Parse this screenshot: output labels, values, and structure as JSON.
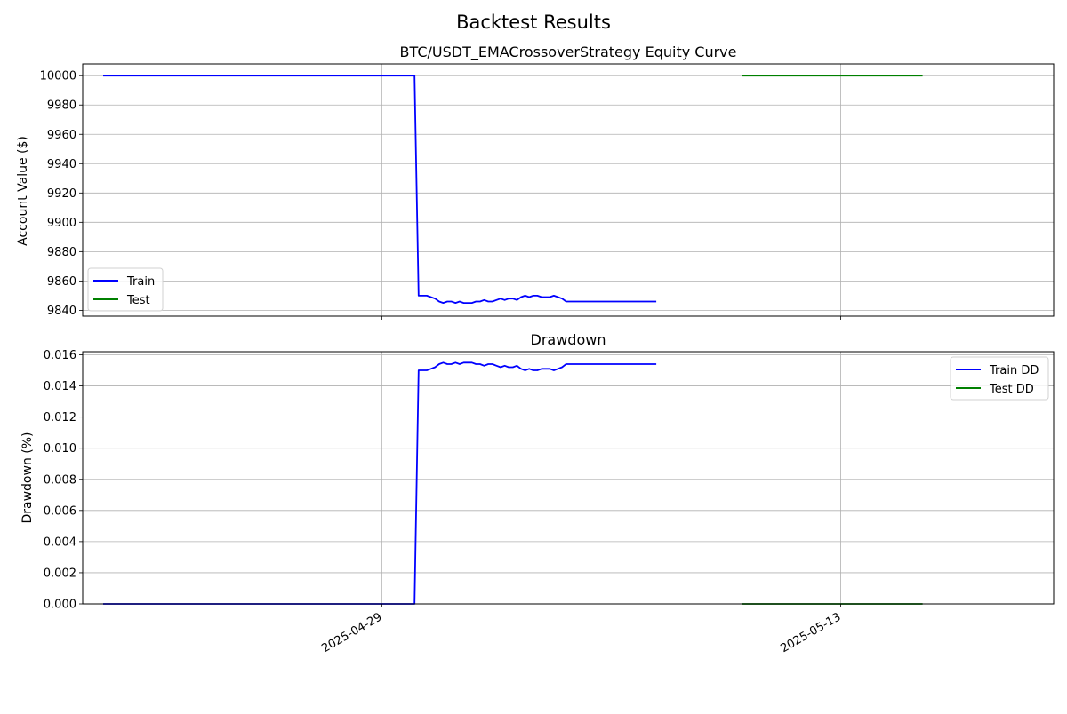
{
  "figure": {
    "suptitle": "Backtest Results"
  },
  "colors": {
    "train": "#0000ff",
    "test": "#008000",
    "grid": "#b0b0b0",
    "axes": "#000000"
  },
  "chart_data": [
    {
      "type": "line",
      "title": "BTC/USDT_EMACrossoverStrategy Equity Curve",
      "xlabel": "",
      "ylabel": "Account Value ($)",
      "ylim": [
        9836,
        10008
      ],
      "xlim": [
        "2025-04-19 21:00",
        "2025-05-19 12:00"
      ],
      "x_ticks": [
        "2025-04-29",
        "2025-05-13"
      ],
      "x_tick_labels_visible": false,
      "y_ticks": [
        9840,
        9860,
        9880,
        9900,
        9920,
        9940,
        9960,
        9980,
        10000
      ],
      "y_tick_labels": [
        "9840",
        "9860",
        "9880",
        "9900",
        "9920",
        "9940",
        "9960",
        "9980",
        "10000"
      ],
      "grid": true,
      "legend": "lower-left",
      "series": [
        {
          "name": "Train",
          "color": "#0000ff",
          "x": [
            "2025-04-20 12:00",
            "2025-04-30 00:00",
            "2025-04-30 03:00",
            "2025-04-30 09:00",
            "2025-04-30 12:00",
            "2025-04-30 15:00",
            "2025-04-30 18:00",
            "2025-04-30 21:00",
            "2025-05-01 00:00",
            "2025-05-01 03:00",
            "2025-05-01 06:00",
            "2025-05-01 09:00",
            "2025-05-01 12:00",
            "2025-05-01 15:00",
            "2025-05-01 18:00",
            "2025-05-01 21:00",
            "2025-05-02 00:00",
            "2025-05-02 03:00",
            "2025-05-02 06:00",
            "2025-05-02 09:00",
            "2025-05-02 12:00",
            "2025-05-02 15:00",
            "2025-05-02 18:00",
            "2025-05-02 21:00",
            "2025-05-03 00:00",
            "2025-05-03 03:00",
            "2025-05-03 06:00",
            "2025-05-03 09:00",
            "2025-05-03 12:00",
            "2025-05-03 15:00",
            "2025-05-03 18:00",
            "2025-05-03 21:00",
            "2025-05-04 00:00",
            "2025-05-04 03:00",
            "2025-05-04 06:00",
            "2025-05-04 09:00",
            "2025-05-04 12:00",
            "2025-05-04 15:00",
            "2025-05-04 18:00",
            "2025-05-04 21:00",
            "2025-05-05 00:00",
            "2025-05-05 03:00",
            "2025-05-05 06:00",
            "2025-05-07 09:00"
          ],
          "values": [
            10000,
            10000,
            9850,
            9850,
            9849,
            9848,
            9846,
            9845,
            9846,
            9846,
            9845,
            9846,
            9845,
            9845,
            9845,
            9846,
            9846,
            9847,
            9846,
            9846,
            9847,
            9848,
            9847,
            9848,
            9848,
            9847,
            9849,
            9850,
            9849,
            9850,
            9850,
            9849,
            9849,
            9849,
            9850,
            9849,
            9848,
            9846,
            9846,
            9846,
            9846,
            9846,
            9846,
            9846
          ]
        },
        {
          "name": "Test",
          "color": "#008000",
          "x": [
            "2025-05-10 00:00",
            "2025-05-15 12:00"
          ],
          "values": [
            10000,
            10000
          ]
        }
      ]
    },
    {
      "type": "line",
      "title": "Drawdown",
      "xlabel": "",
      "ylabel": "Drawdown (%)",
      "ylim": [
        0,
        0.0162
      ],
      "xlim": [
        "2025-04-19 21:00",
        "2025-05-19 12:00"
      ],
      "x_ticks": [
        "2025-04-29",
        "2025-05-13"
      ],
      "x_tick_labels": [
        "2025-04-29",
        "2025-05-13"
      ],
      "y_ticks": [
        0.0,
        0.002,
        0.004,
        0.006,
        0.008,
        0.01,
        0.012,
        0.014,
        0.016
      ],
      "y_tick_labels": [
        "0.000",
        "0.002",
        "0.004",
        "0.006",
        "0.008",
        "0.010",
        "0.012",
        "0.014",
        "0.016"
      ],
      "grid": true,
      "legend": "upper-right",
      "series": [
        {
          "name": "Train DD",
          "color": "#0000ff",
          "x": [
            "2025-04-20 12:00",
            "2025-04-30 00:00",
            "2025-04-30 03:00",
            "2025-04-30 09:00",
            "2025-04-30 12:00",
            "2025-04-30 15:00",
            "2025-04-30 18:00",
            "2025-04-30 21:00",
            "2025-05-01 00:00",
            "2025-05-01 03:00",
            "2025-05-01 06:00",
            "2025-05-01 09:00",
            "2025-05-01 12:00",
            "2025-05-01 15:00",
            "2025-05-01 18:00",
            "2025-05-01 21:00",
            "2025-05-02 00:00",
            "2025-05-02 03:00",
            "2025-05-02 06:00",
            "2025-05-02 09:00",
            "2025-05-02 12:00",
            "2025-05-02 15:00",
            "2025-05-02 18:00",
            "2025-05-02 21:00",
            "2025-05-03 00:00",
            "2025-05-03 03:00",
            "2025-05-03 06:00",
            "2025-05-03 09:00",
            "2025-05-03 12:00",
            "2025-05-03 15:00",
            "2025-05-03 18:00",
            "2025-05-03 21:00",
            "2025-05-04 00:00",
            "2025-05-04 03:00",
            "2025-05-04 06:00",
            "2025-05-04 09:00",
            "2025-05-04 12:00",
            "2025-05-04 15:00",
            "2025-05-04 18:00",
            "2025-05-04 21:00",
            "2025-05-05 00:00",
            "2025-05-05 03:00",
            "2025-05-05 06:00",
            "2025-05-07 09:00"
          ],
          "values": [
            0,
            0,
            0.015,
            0.015,
            0.0151,
            0.0152,
            0.0154,
            0.0155,
            0.0154,
            0.0154,
            0.0155,
            0.0154,
            0.0155,
            0.0155,
            0.0155,
            0.0154,
            0.0154,
            0.0153,
            0.0154,
            0.0154,
            0.0153,
            0.0152,
            0.0153,
            0.0152,
            0.0152,
            0.0153,
            0.0151,
            0.015,
            0.0151,
            0.015,
            0.015,
            0.0151,
            0.0151,
            0.0151,
            0.015,
            0.0151,
            0.0152,
            0.0154,
            0.0154,
            0.0154,
            0.0154,
            0.0154,
            0.0154,
            0.0154
          ]
        },
        {
          "name": "Test DD",
          "color": "#008000",
          "x": [
            "2025-05-10 00:00",
            "2025-05-15 12:00"
          ],
          "values": [
            0,
            0
          ]
        }
      ]
    }
  ]
}
